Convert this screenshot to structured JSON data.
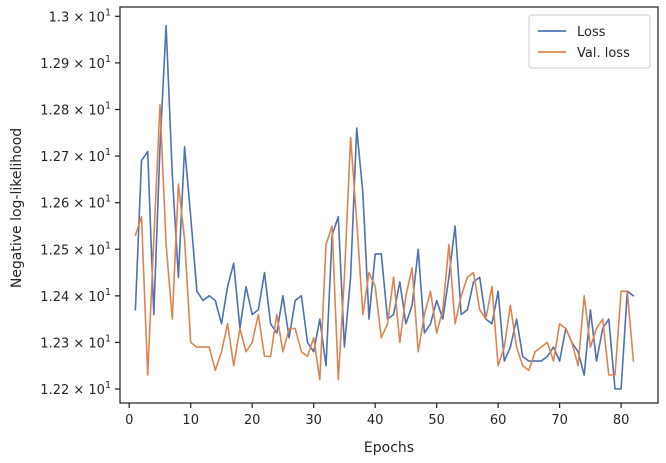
{
  "chart_data": {
    "type": "line",
    "xlabel": "Epochs",
    "ylabel": "Negative log-likelihood",
    "xlim": [
      -1.5,
      86
    ],
    "ylim": [
      12.17,
      13.02
    ],
    "x_ticks": [
      0,
      10,
      20,
      30,
      40,
      50,
      60,
      70,
      80
    ],
    "y_ticks": [
      {
        "value": 12.2,
        "mantissa": "1.22",
        "exp": "1"
      },
      {
        "value": 12.3,
        "mantissa": "1.23",
        "exp": "1"
      },
      {
        "value": 12.4,
        "mantissa": "1.24",
        "exp": "1"
      },
      {
        "value": 12.5,
        "mantissa": "1.25",
        "exp": "1"
      },
      {
        "value": 12.6,
        "mantissa": "1.26",
        "exp": "1"
      },
      {
        "value": 12.7,
        "mantissa": "1.27",
        "exp": "1"
      },
      {
        "value": 12.8,
        "mantissa": "1.28",
        "exp": "1"
      },
      {
        "value": 12.9,
        "mantissa": "1.29",
        "exp": "1"
      },
      {
        "value": 13.0,
        "mantissa": "1.3",
        "exp": "1"
      }
    ],
    "grid": false,
    "legend_position": "top-right",
    "x": [
      1,
      2,
      3,
      4,
      5,
      6,
      7,
      8,
      9,
      10,
      11,
      12,
      13,
      14,
      15,
      16,
      17,
      18,
      19,
      20,
      21,
      22,
      23,
      24,
      25,
      26,
      27,
      28,
      29,
      30,
      31,
      32,
      33,
      34,
      35,
      36,
      37,
      38,
      39,
      40,
      41,
      42,
      43,
      44,
      45,
      46,
      47,
      48,
      49,
      50,
      51,
      52,
      53,
      54,
      55,
      56,
      57,
      58,
      59,
      60,
      61,
      62,
      63,
      64,
      65,
      66,
      67,
      68,
      69,
      70,
      71,
      72,
      73,
      74,
      75,
      76,
      77,
      78,
      79,
      80,
      81,
      82
    ],
    "series": [
      {
        "name": "Loss",
        "color": "#4c72b0",
        "values": [
          12.37,
          12.69,
          12.71,
          12.36,
          12.72,
          12.98,
          12.66,
          12.44,
          12.72,
          12.57,
          12.41,
          12.39,
          12.4,
          12.39,
          12.34,
          12.42,
          12.47,
          12.33,
          12.42,
          12.36,
          12.37,
          12.45,
          12.34,
          12.32,
          12.4,
          12.31,
          12.39,
          12.4,
          12.3,
          12.28,
          12.35,
          12.25,
          12.53,
          12.57,
          12.29,
          12.44,
          12.76,
          12.62,
          12.35,
          12.49,
          12.49,
          12.35,
          12.36,
          12.43,
          12.34,
          12.38,
          12.5,
          12.32,
          12.34,
          12.39,
          12.35,
          12.44,
          12.55,
          12.36,
          12.37,
          12.43,
          12.44,
          12.35,
          12.34,
          12.41,
          12.26,
          12.29,
          12.35,
          12.27,
          12.26,
          12.26,
          12.26,
          12.27,
          12.29,
          12.26,
          12.33,
          12.3,
          12.28,
          12.23,
          12.37,
          12.26,
          12.33,
          12.35,
          12.2,
          12.2,
          12.41,
          12.4
        ]
      },
      {
        "name": "Val. loss",
        "color": "#dd8452",
        "values": [
          12.53,
          12.57,
          12.23,
          12.52,
          12.81,
          12.51,
          12.35,
          12.64,
          12.52,
          12.3,
          12.29,
          12.29,
          12.29,
          12.24,
          12.28,
          12.34,
          12.25,
          12.33,
          12.28,
          12.3,
          12.36,
          12.27,
          12.27,
          12.36,
          12.28,
          12.33,
          12.33,
          12.28,
          12.27,
          12.31,
          12.22,
          12.51,
          12.55,
          12.22,
          12.44,
          12.74,
          12.56,
          12.36,
          12.45,
          12.42,
          12.31,
          12.34,
          12.44,
          12.3,
          12.4,
          12.46,
          12.28,
          12.36,
          12.41,
          12.32,
          12.37,
          12.51,
          12.34,
          12.4,
          12.44,
          12.45,
          12.37,
          12.35,
          12.42,
          12.25,
          12.29,
          12.38,
          12.29,
          12.25,
          12.24,
          12.28,
          12.29,
          12.3,
          12.26,
          12.34,
          12.33,
          12.3,
          12.25,
          12.4,
          12.29,
          12.33,
          12.35,
          12.23,
          12.23,
          12.41,
          12.41,
          12.26
        ]
      }
    ]
  }
}
